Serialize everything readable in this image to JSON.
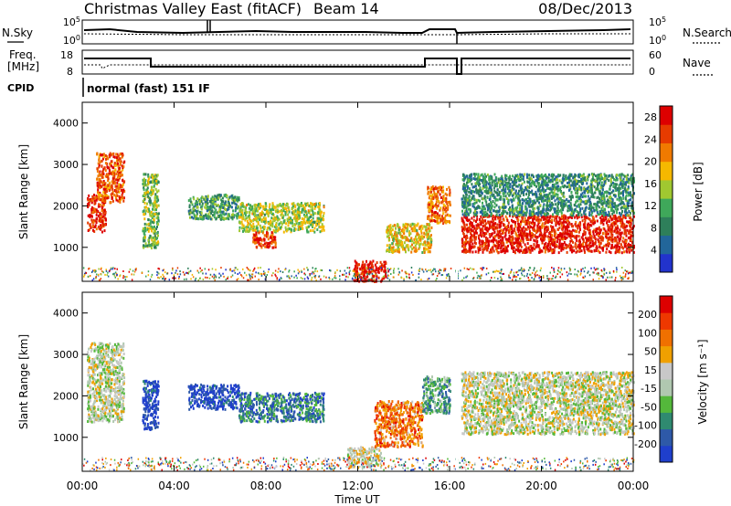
{
  "header": {
    "title": "Christmas Valley East (fitACF)",
    "beam": "Beam 14",
    "date": "08/Dec/2013"
  },
  "top_panels": {
    "nsky_label": "N.Sky",
    "nsky_tick_top": "10^5",
    "nsky_tick_bottom": "10^0",
    "nsearch_label": "N.Search",
    "nsearch_tick_top": "10^5",
    "nsearch_tick_bottom": "10^0",
    "freq_label": "Freq.",
    "freq_unit": "[MHz]",
    "freq_tick_top": "18",
    "freq_tick_bottom": "8",
    "nave_label": "Nave",
    "nave_tick_top": "60",
    "nave_tick_bottom": "0",
    "cpid_label": "CPID",
    "cpid_value": "normal (fast) 151 IF"
  },
  "colors": {
    "power_scale": [
      "#2233cc",
      "#22669a",
      "#2e7f5a",
      "#3fa85a",
      "#a0c830",
      "#f5b800",
      "#f07a00",
      "#e63b00",
      "#dd0000"
    ],
    "velocity_scale": [
      "#1f3fcc",
      "#2e59a8",
      "#2f8a70",
      "#54b83b",
      "#b0c8b0",
      "#c8c8c8",
      "#f0a000",
      "#f07000",
      "#ee3800",
      "#dd0000"
    ],
    "gray": "#c8c8c8"
  },
  "chart_data": [
    {
      "type": "heatmap",
      "name": "power",
      "ylabel": "Slant Range [km]",
      "xlabel": "Time UT",
      "x_ticks": [
        "00:00",
        "04:00",
        "08:00",
        "12:00",
        "16:00",
        "20:00",
        "00:00"
      ],
      "xlim_hours": [
        0,
        24
      ],
      "ylim_km": [
        180,
        4500
      ],
      "y_ticks": [
        1000,
        2000,
        3000,
        4000
      ],
      "colorbar": {
        "label": "Power [dB]",
        "ticks": [
          "4",
          "8",
          "12",
          "16",
          "20",
          "24",
          "28"
        ],
        "range": [
          0,
          30
        ]
      },
      "regions": [
        {
          "t0": 0.2,
          "t1": 1.0,
          "r0": 1400,
          "r1": 2300,
          "level": 0.9
        },
        {
          "t0": 0.6,
          "t1": 1.8,
          "r0": 2100,
          "r1": 3300,
          "level": 0.8
        },
        {
          "t0": 2.6,
          "t1": 3.3,
          "r0": 1000,
          "r1": 2800,
          "level": 0.45
        },
        {
          "t0": 4.6,
          "t1": 6.8,
          "r0": 1700,
          "r1": 2300,
          "level": 0.35
        },
        {
          "t0": 6.8,
          "t1": 10.5,
          "r0": 1400,
          "r1": 2100,
          "level": 0.5
        },
        {
          "t0": 7.4,
          "t1": 8.4,
          "r0": 1000,
          "r1": 1400,
          "level": 0.85
        },
        {
          "t0": 11.8,
          "t1": 13.2,
          "r0": 200,
          "r1": 700,
          "level": 0.95
        },
        {
          "t0": 13.2,
          "t1": 15.2,
          "r0": 900,
          "r1": 1600,
          "level": 0.6
        },
        {
          "t0": 15.0,
          "t1": 16.0,
          "r0": 1600,
          "r1": 2500,
          "level": 0.75
        },
        {
          "t0": 16.5,
          "t1": 24.0,
          "r0": 900,
          "r1": 1800,
          "level": 0.92
        },
        {
          "t0": 16.5,
          "t1": 24.0,
          "r0": 1800,
          "r1": 2800,
          "level": 0.3
        }
      ]
    },
    {
      "type": "heatmap",
      "name": "velocity",
      "ylabel": "Slant Range [km]",
      "xlabel": "Time UT",
      "x_ticks": [
        "00:00",
        "04:00",
        "08:00",
        "12:00",
        "16:00",
        "20:00",
        "00:00"
      ],
      "xlim_hours": [
        0,
        24
      ],
      "ylim_km": [
        180,
        4500
      ],
      "y_ticks": [
        1000,
        2000,
        3000,
        4000
      ],
      "colorbar": {
        "label": "Velocity [m s⁻¹]",
        "ticks": [
          "200",
          "100",
          "50",
          "15",
          "-15",
          "-50",
          "-100",
          "-200"
        ],
        "range": [
          -250,
          250
        ]
      },
      "regions": [
        {
          "t0": 0.2,
          "t1": 1.8,
          "r0": 1400,
          "r1": 3300,
          "level": 0.5
        },
        {
          "t0": 2.6,
          "t1": 3.3,
          "r0": 1200,
          "r1": 2400,
          "level": 0.05
        },
        {
          "t0": 4.6,
          "t1": 6.8,
          "r0": 1700,
          "r1": 2300,
          "level": 0.05
        },
        {
          "t0": 6.8,
          "t1": 10.5,
          "r0": 1400,
          "r1": 2100,
          "level": 0.2
        },
        {
          "t0": 11.5,
          "t1": 13.0,
          "r0": 300,
          "r1": 800,
          "level": 0.55
        },
        {
          "t0": 12.7,
          "t1": 14.8,
          "r0": 800,
          "r1": 1900,
          "level": 0.75
        },
        {
          "t0": 14.8,
          "t1": 16.0,
          "r0": 1600,
          "r1": 2500,
          "level": 0.3
        },
        {
          "t0": 16.5,
          "t1": 24.0,
          "r0": 1100,
          "r1": 2600,
          "level": 0.5
        }
      ]
    }
  ]
}
